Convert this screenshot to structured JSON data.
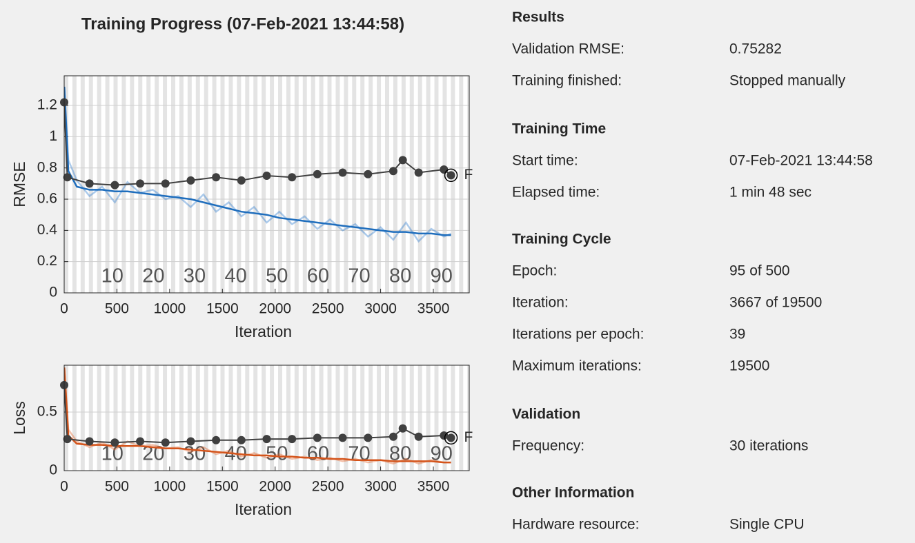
{
  "chart_data": [
    {
      "type": "line",
      "title": "Training Progress (07-Feb-2021 13:44:58)",
      "ylabel": "RMSE",
      "xlabel": "Iteration",
      "x": [
        1,
        40,
        120,
        240,
        360,
        480,
        600,
        720,
        840,
        960,
        1080,
        1200,
        1320,
        1440,
        1560,
        1680,
        1800,
        1920,
        2040,
        2160,
        2280,
        2400,
        2520,
        2640,
        2760,
        2880,
        3000,
        3120,
        3240,
        3360,
        3480,
        3600,
        3667
      ],
      "xlim": [
        0,
        3840
      ],
      "xticks": [
        0,
        500,
        1000,
        1500,
        2000,
        2500,
        3000,
        3500
      ],
      "ylim": [
        0,
        1.39
      ],
      "yticks": [
        0,
        0.2,
        0.4,
        0.6,
        0.8,
        1,
        1.2
      ],
      "grid": true,
      "epoch_labels": [
        10,
        20,
        30,
        40,
        50,
        60,
        70,
        80,
        90
      ],
      "final_label": "F",
      "series": [
        {
          "color": "#2f7dd0",
          "opacity": 0.4,
          "values": [
            1.32,
            0.85,
            0.72,
            0.62,
            0.68,
            0.58,
            0.71,
            0.64,
            0.66,
            0.6,
            0.62,
            0.55,
            0.63,
            0.52,
            0.58,
            0.49,
            0.55,
            0.45,
            0.52,
            0.44,
            0.49,
            0.41,
            0.47,
            0.4,
            0.44,
            0.36,
            0.42,
            0.34,
            0.45,
            0.33,
            0.41,
            0.36,
            0.38
          ]
        },
        {
          "color": "#1f6ebd",
          "opacity": 1,
          "values": [
            1.32,
            0.78,
            0.68,
            0.66,
            0.66,
            0.65,
            0.65,
            0.64,
            0.63,
            0.62,
            0.61,
            0.6,
            0.58,
            0.56,
            0.54,
            0.52,
            0.51,
            0.5,
            0.48,
            0.47,
            0.46,
            0.45,
            0.44,
            0.43,
            0.42,
            0.41,
            0.4,
            0.39,
            0.39,
            0.38,
            0.38,
            0.37,
            0.37
          ]
        },
        {
          "color": "#404040",
          "markers": true,
          "x": [
            0,
            30,
            240,
            480,
            720,
            960,
            1200,
            1440,
            1680,
            1920,
            2160,
            2400,
            2640,
            2880,
            3120,
            3210,
            3360,
            3600,
            3667
          ],
          "values": [
            1.22,
            0.74,
            0.7,
            0.69,
            0.7,
            0.7,
            0.72,
            0.74,
            0.72,
            0.75,
            0.74,
            0.76,
            0.77,
            0.76,
            0.78,
            0.85,
            0.77,
            0.79,
            0.753
          ]
        }
      ]
    },
    {
      "type": "line",
      "ylabel": "Loss",
      "xlabel": "Iteration",
      "x": [
        1,
        40,
        120,
        240,
        360,
        480,
        600,
        720,
        840,
        960,
        1080,
        1200,
        1320,
        1440,
        1560,
        1680,
        1800,
        1920,
        2040,
        2160,
        2280,
        2400,
        2520,
        2640,
        2760,
        2880,
        3000,
        3120,
        3240,
        3360,
        3480,
        3600,
        3667
      ],
      "xlim": [
        0,
        3840
      ],
      "xticks": [
        0,
        500,
        1000,
        1500,
        2000,
        2500,
        3000,
        3500
      ],
      "ylim": [
        0,
        0.9
      ],
      "yticks": [
        0,
        0.5
      ],
      "grid": true,
      "epoch_labels": [
        10,
        20,
        30,
        40,
        50,
        60,
        70,
        80,
        90
      ],
      "final_label": "F",
      "series": [
        {
          "color": "#e4632a",
          "opacity": 0.4,
          "values": [
            0.88,
            0.35,
            0.25,
            0.2,
            0.24,
            0.18,
            0.25,
            0.21,
            0.22,
            0.19,
            0.2,
            0.16,
            0.2,
            0.14,
            0.17,
            0.12,
            0.15,
            0.11,
            0.14,
            0.1,
            0.12,
            0.09,
            0.11,
            0.08,
            0.1,
            0.07,
            0.09,
            0.06,
            0.1,
            0.06,
            0.09,
            0.07,
            0.07
          ]
        },
        {
          "color": "#d4541b",
          "opacity": 1,
          "values": [
            0.88,
            0.3,
            0.23,
            0.22,
            0.22,
            0.21,
            0.21,
            0.21,
            0.2,
            0.19,
            0.19,
            0.18,
            0.17,
            0.16,
            0.15,
            0.14,
            0.13,
            0.13,
            0.12,
            0.12,
            0.11,
            0.11,
            0.1,
            0.1,
            0.09,
            0.09,
            0.09,
            0.08,
            0.08,
            0.08,
            0.08,
            0.07,
            0.07
          ]
        },
        {
          "color": "#404040",
          "markers": true,
          "x": [
            0,
            30,
            240,
            480,
            720,
            960,
            1200,
            1440,
            1680,
            1920,
            2160,
            2400,
            2640,
            2880,
            3120,
            3210,
            3360,
            3600,
            3667
          ],
          "values": [
            0.73,
            0.27,
            0.25,
            0.24,
            0.25,
            0.24,
            0.25,
            0.26,
            0.26,
            0.27,
            0.27,
            0.28,
            0.28,
            0.28,
            0.29,
            0.36,
            0.29,
            0.3,
            0.28
          ]
        }
      ]
    }
  ],
  "info": {
    "sections": [
      {
        "title": "Results",
        "rows": [
          [
            "Validation RMSE:",
            "0.75282"
          ],
          [
            "Training finished:",
            "Stopped manually"
          ]
        ]
      },
      {
        "title": "Training Time",
        "rows": [
          [
            "Start time:",
            "07-Feb-2021 13:44:58"
          ],
          [
            "Elapsed time:",
            "1 min 48 sec"
          ]
        ]
      },
      {
        "title": "Training Cycle",
        "rows": [
          [
            "Epoch:",
            "95 of 500"
          ],
          [
            "Iteration:",
            "3667 of 19500"
          ],
          [
            "Iterations per epoch:",
            "39"
          ],
          [
            "Maximum iterations:",
            "19500"
          ]
        ]
      },
      {
        "title": "Validation",
        "rows": [
          [
            "Frequency:",
            "30 iterations"
          ]
        ]
      },
      {
        "title": "Other Information",
        "rows": [
          [
            "Hardware resource:",
            "Single CPU"
          ]
        ]
      }
    ]
  }
}
